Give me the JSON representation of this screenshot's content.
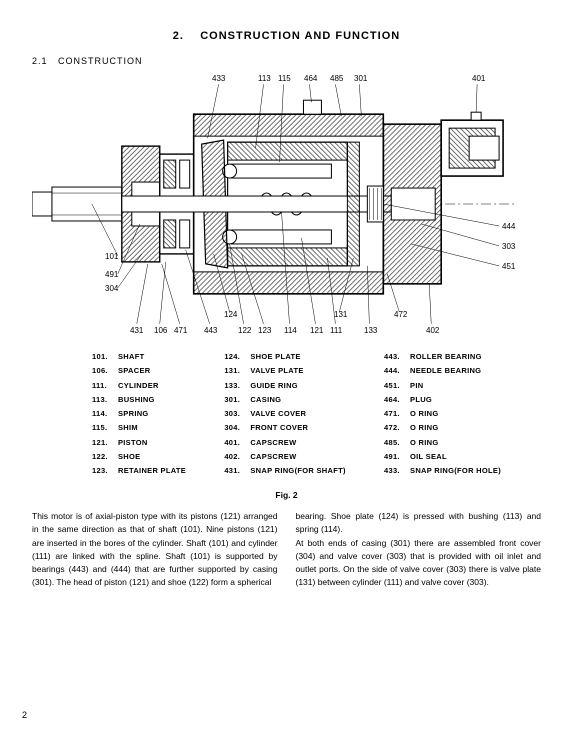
{
  "section": {
    "number": "2.",
    "title": "CONSTRUCTION AND FUNCTION",
    "sub_number": "2.1",
    "sub_title": "CONSTRUCTION"
  },
  "callouts": {
    "top": [
      "433",
      "113",
      "115",
      "464",
      "485",
      "301",
      "401"
    ],
    "left": [
      "101",
      "491",
      "304"
    ],
    "right": [
      "444",
      "303",
      "451"
    ],
    "bottom_mid": [
      "124",
      "131",
      "472"
    ],
    "bottom": [
      "431",
      "106",
      "471",
      "443",
      "122",
      "123",
      "114",
      "121",
      "111",
      "133",
      "402"
    ]
  },
  "parts": {
    "col1": [
      {
        "n": "101.",
        "t": "SHAFT"
      },
      {
        "n": "106.",
        "t": "SPACER"
      },
      {
        "n": "111.",
        "t": "CYLINDER"
      },
      {
        "n": "113.",
        "t": "BUSHING"
      },
      {
        "n": "114.",
        "t": "SPRING"
      },
      {
        "n": "115.",
        "t": "SHIM"
      },
      {
        "n": "121.",
        "t": "PISTON"
      },
      {
        "n": "122.",
        "t": "SHOE"
      },
      {
        "n": "123.",
        "t": "RETAINER PLATE"
      }
    ],
    "col2": [
      {
        "n": "124.",
        "t": "SHOE PLATE"
      },
      {
        "n": "131.",
        "t": "VALVE PLATE"
      },
      {
        "n": "133.",
        "t": "GUIDE RING"
      },
      {
        "n": "301.",
        "t": "CASING"
      },
      {
        "n": "303.",
        "t": "VALVE COVER"
      },
      {
        "n": "304.",
        "t": "FRONT COVER"
      },
      {
        "n": "401.",
        "t": "CAPSCREW"
      },
      {
        "n": "402.",
        "t": "CAPSCREW"
      },
      {
        "n": "431.",
        "t": "SNAP RING(FOR SHAFT)"
      }
    ],
    "col3": [
      {
        "n": "443.",
        "t": "ROLLER BEARING"
      },
      {
        "n": "444.",
        "t": "NEEDLE BEARING"
      },
      {
        "n": "451.",
        "t": "PIN"
      },
      {
        "n": "464.",
        "t": "PLUG"
      },
      {
        "n": "471.",
        "t": "O RING"
      },
      {
        "n": "472.",
        "t": "O RING"
      },
      {
        "n": "485.",
        "t": "O RING"
      },
      {
        "n": "491.",
        "t": "OIL SEAL"
      },
      {
        "n": "433.",
        "t": "SNAP RING(FOR HOLE)"
      }
    ]
  },
  "fig_caption": "Fig. 2",
  "body": {
    "left": "This motor is of axial-piston type with its pistons (121) arranged in the same direction as that of shaft (101). Nine pistons (121) are inserted in the bores of the cylinder. Shaft (101) and cylinder (111) are linked with the spline. Shaft (101) is supported by bearings (443) and (444) that are further supported by casing (301). The head of piston (121) and shoe (122) form a spherical",
    "right": "bearing. Shoe plate (124) is pressed with bushing (113) and spring (114).\nAt both ends of casing (301) there are assembled front cover (304) and valve cover (303) that is provided with oil inlet and outlet ports. On the side of valve cover (303) there is valve plate (131) between cylinder (111) and valve cover (303)."
  },
  "page_number": "2",
  "diagram": {
    "stroke": "#000000",
    "fill": "#ffffff",
    "stroke_width": 1.2,
    "hatch_spacing": 4
  }
}
